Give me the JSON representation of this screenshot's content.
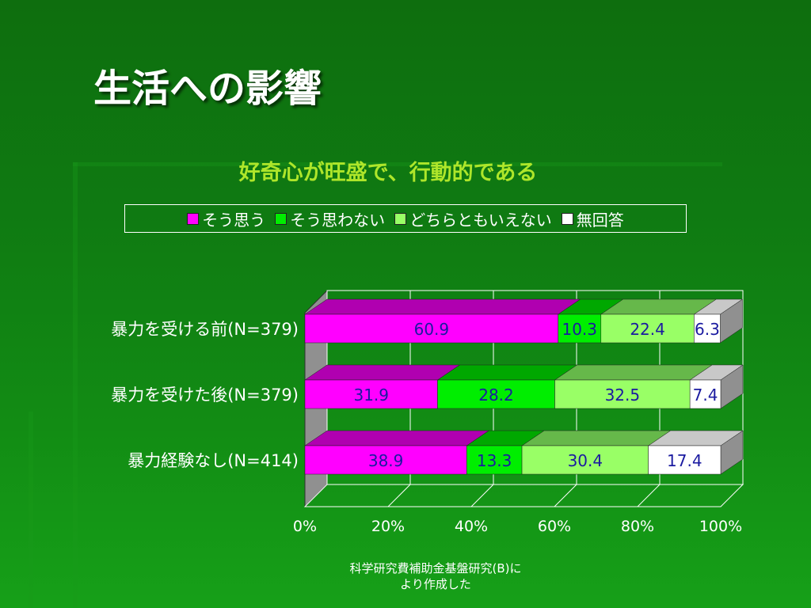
{
  "slide": {
    "title": "生活への影響",
    "footer_line1": "科学研究費補助金基盤研究(B)に",
    "footer_line2": "より作成した"
  },
  "colors": {
    "background": "#0f7a12",
    "series": [
      "#ff00ff",
      "#00ee00",
      "#99ff66",
      "#ffffff"
    ],
    "series_top": [
      "#b000b0",
      "#00a800",
      "#66b84a",
      "#c8c8c8"
    ]
  },
  "legend": [
    {
      "label": "そう思う"
    },
    {
      "label": "そう思わない"
    },
    {
      "label": "どちらともいえない"
    },
    {
      "label": "無回答"
    }
  ],
  "chart_data": {
    "type": "bar",
    "orientation": "horizontal",
    "stacked": "percent",
    "title": "好奇心が旺盛で、行動的である",
    "categories": [
      "暴力を受ける前(N=379)",
      "暴力を受けた後(N=379)",
      "暴力経験なし(N=414)"
    ],
    "series": [
      {
        "name": "そう思う",
        "values": [
          60.9,
          31.9,
          38.9
        ]
      },
      {
        "name": "そう思わない",
        "values": [
          10.3,
          28.2,
          13.3
        ]
      },
      {
        "name": "どちらともいえない",
        "values": [
          22.4,
          32.5,
          30.4
        ]
      },
      {
        "name": "無回答",
        "values": [
          6.3,
          7.4,
          17.4
        ]
      }
    ],
    "data_labels": [
      [
        "60.9",
        "10.3",
        "22.4",
        "6.3"
      ],
      [
        "31.9",
        "28.2",
        "32.5",
        "7.4"
      ],
      [
        "38.9",
        "13.3",
        "30.4",
        "17.4"
      ]
    ],
    "x_ticks": [
      "0%",
      "20%",
      "40%",
      "60%",
      "80%",
      "100%"
    ],
    "xlim": [
      0,
      100
    ],
    "grid": true,
    "legend_position": "top"
  }
}
